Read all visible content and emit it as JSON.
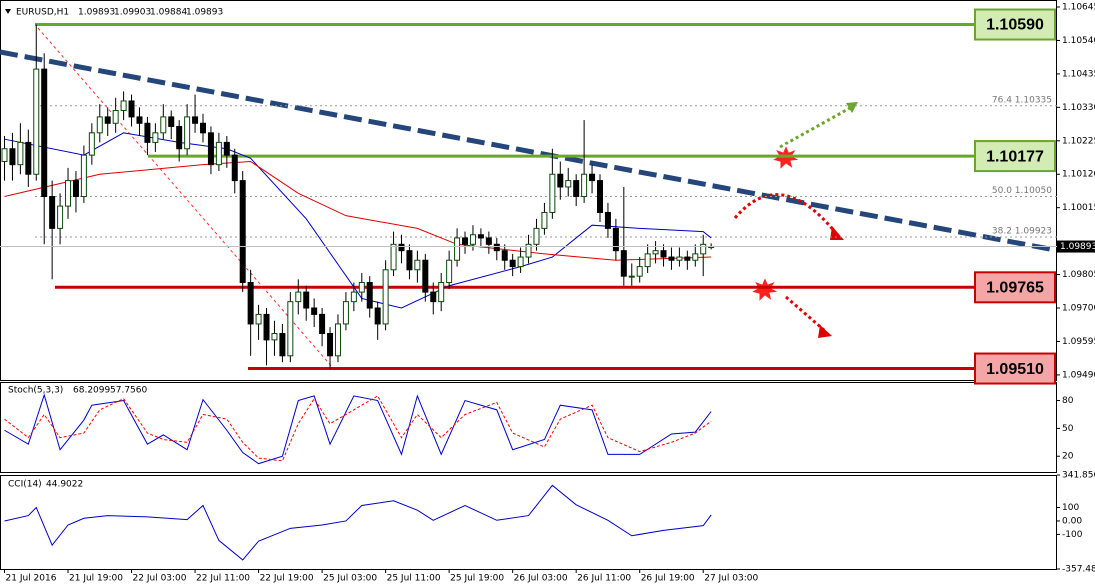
{
  "chart_data": [
    {
      "type": "candlestick",
      "title": "EURUSD,H1",
      "categories": [
        "21 Jul 2016",
        null,
        null,
        null,
        null,
        null,
        null,
        null,
        "21 Jul 19:00",
        null,
        null,
        null,
        null,
        null,
        null,
        null,
        "22 Jul 03:00",
        null,
        null,
        null,
        null,
        null,
        null,
        null,
        "22 Jul 11:00",
        null,
        null,
        null,
        null,
        null,
        null,
        null,
        "22 Jul 19:00",
        null,
        null,
        null,
        null,
        null,
        null,
        null,
        "25 Jul 03:00",
        null,
        null,
        null,
        null,
        null,
        null,
        null,
        "25 Jul 11:00",
        null,
        null,
        null,
        null,
        null,
        null,
        null,
        "25 Jul 19:00",
        null,
        null,
        null,
        null,
        null,
        null,
        null,
        "26 Jul 03:00",
        null,
        null,
        null,
        null,
        null,
        null,
        null,
        "26 Jul 11:00",
        null,
        null,
        null,
        null,
        null,
        null,
        null,
        "26 Jul 19:00",
        null,
        null,
        null,
        null,
        null,
        null,
        null,
        "27 Jul 03:00",
        null
      ],
      "candles": [
        [
          1.1016,
          1.1024,
          1.101,
          1.102
        ],
        [
          1.102,
          1.1025,
          1.101,
          1.1015
        ],
        [
          1.1015,
          1.1028,
          1.1012,
          1.1022
        ],
        [
          1.1022,
          1.1026,
          1.1008,
          1.1012
        ],
        [
          1.1012,
          1.1059,
          1.101,
          1.1045
        ],
        [
          1.1045,
          1.105,
          1.099,
          1.1005
        ],
        [
          1.1005,
          1.101,
          1.0979,
          1.0995
        ],
        [
          1.0995,
          1.1006,
          1.099,
          1.1002
        ],
        [
          1.1002,
          1.1014,
          1.0998,
          1.101
        ],
        [
          1.101,
          1.1013,
          1.1,
          1.1005
        ],
        [
          1.1005,
          1.1021,
          1.1003,
          1.1018
        ],
        [
          1.1018,
          1.1028,
          1.1015,
          1.1025
        ],
        [
          1.1025,
          1.1034,
          1.1022,
          1.103
        ],
        [
          1.103,
          1.1033,
          1.1024,
          1.1028
        ],
        [
          1.1028,
          1.1036,
          1.1025,
          1.1032
        ],
        [
          1.1032,
          1.1038,
          1.1029,
          1.1035
        ],
        [
          1.1035,
          1.1037,
          1.1027,
          1.103
        ],
        [
          1.103,
          1.1033,
          1.1024,
          1.1028
        ],
        [
          1.1028,
          1.103,
          1.1018,
          1.1022
        ],
        [
          1.1022,
          1.1028,
          1.1019,
          1.1025
        ],
        [
          1.1025,
          1.1034,
          1.1023,
          1.103
        ],
        [
          1.103,
          1.1032,
          1.1023,
          1.1027
        ],
        [
          1.1027,
          1.1029,
          1.1016,
          1.102
        ],
        [
          1.102,
          1.1034,
          1.1018,
          1.103
        ],
        [
          1.103,
          1.1037,
          1.1025,
          1.1028
        ],
        [
          1.1028,
          1.1031,
          1.1022,
          1.1025
        ],
        [
          1.1025,
          1.1027,
          1.1012,
          1.1015
        ],
        [
          1.1015,
          1.1025,
          1.1013,
          1.1022
        ],
        [
          1.1022,
          1.1024,
          1.1014,
          1.1018
        ],
        [
          1.1018,
          1.102,
          1.1006,
          1.101
        ],
        [
          1.101,
          1.1013,
          1.0975,
          1.0978
        ],
        [
          1.0978,
          1.0982,
          1.0955,
          1.0965
        ],
        [
          1.0965,
          1.0971,
          1.096,
          1.0968
        ],
        [
          1.0968,
          1.097,
          1.0952,
          1.096
        ],
        [
          1.096,
          1.0966,
          1.0955,
          1.0962
        ],
        [
          1.0962,
          1.0965,
          1.0953,
          1.0955
        ],
        [
          1.0955,
          1.0975,
          1.0953,
          1.0972
        ],
        [
          1.0972,
          1.0979,
          1.0968,
          1.0975
        ],
        [
          1.0975,
          1.0977,
          1.0966,
          1.097
        ],
        [
          1.097,
          1.0973,
          1.0964,
          1.0968
        ],
        [
          1.0968,
          1.097,
          1.0958,
          1.0962
        ],
        [
          1.0962,
          1.0964,
          1.0951,
          1.0955
        ],
        [
          1.0955,
          1.0968,
          1.0953,
          1.0965
        ],
        [
          1.0965,
          1.0975,
          1.0963,
          1.0972
        ],
        [
          1.0972,
          1.0978,
          1.0969,
          1.0975
        ],
        [
          1.0975,
          1.0981,
          1.0972,
          1.0978
        ],
        [
          1.0978,
          1.098,
          1.0967,
          1.097
        ],
        [
          1.097,
          1.0972,
          1.096,
          1.0965
        ],
        [
          1.0965,
          1.0985,
          1.0963,
          1.0982
        ],
        [
          1.0982,
          1.0994,
          1.098,
          1.099
        ],
        [
          1.099,
          1.0993,
          1.0984,
          1.0988
        ],
        [
          1.0988,
          1.099,
          1.0979,
          1.0982
        ],
        [
          1.0982,
          1.0988,
          1.0978,
          1.0985
        ],
        [
          1.0985,
          1.0987,
          1.0972,
          1.0975
        ],
        [
          1.0975,
          1.0978,
          1.0968,
          1.0972
        ],
        [
          1.0972,
          1.0981,
          1.0969,
          1.0978
        ],
        [
          1.0978,
          1.0988,
          1.0976,
          1.0985
        ],
        [
          1.0985,
          1.0995,
          1.0983,
          1.0992
        ],
        [
          1.0992,
          1.0994,
          1.0987,
          1.099
        ],
        [
          1.099,
          1.0996,
          1.0988,
          1.0993
        ],
        [
          1.0993,
          1.0995,
          1.0989,
          1.0992
        ],
        [
          1.0992,
          1.0994,
          1.0987,
          1.099
        ],
        [
          1.099,
          1.0992,
          1.0985,
          1.0988
        ],
        [
          1.0988,
          1.099,
          1.0982,
          1.0985
        ],
        [
          1.0985,
          1.0987,
          1.098,
          1.0983
        ],
        [
          1.0983,
          1.0989,
          1.0981,
          1.0986
        ],
        [
          1.0986,
          1.0993,
          1.0984,
          1.099
        ],
        [
          1.099,
          1.0998,
          1.0988,
          1.0995
        ],
        [
          1.0995,
          1.1003,
          1.0993,
          1.1
        ],
        [
          1.1,
          1.102,
          1.0998,
          1.1012
        ],
        [
          1.1012,
          1.1016,
          1.1004,
          1.1008
        ],
        [
          1.1008,
          1.1014,
          1.1005,
          1.101
        ],
        [
          1.101,
          1.1012,
          1.1002,
          1.1005
        ],
        [
          1.1005,
          1.1029,
          1.1003,
          1.1012
        ],
        [
          1.1012,
          1.1015,
          1.1006,
          1.101
        ],
        [
          1.101,
          1.1012,
          1.0997,
          1.1
        ],
        [
          1.1,
          1.1003,
          1.0992,
          1.0995
        ],
        [
          1.0995,
          1.0998,
          1.0985,
          1.0988
        ],
        [
          1.0988,
          1.1008,
          1.0977,
          1.098
        ],
        [
          1.098,
          1.0984,
          1.0977,
          1.098
        ],
        [
          1.098,
          1.0986,
          1.0978,
          1.0983
        ],
        [
          1.0983,
          1.099,
          1.0981,
          1.0987
        ],
        [
          1.0987,
          1.0991,
          1.0984,
          1.0988
        ],
        [
          1.0988,
          1.099,
          1.0983,
          1.0986
        ],
        [
          1.0986,
          1.0989,
          1.0982,
          1.0985
        ],
        [
          1.0985,
          1.0989,
          1.0983,
          1.0986
        ],
        [
          1.0986,
          1.0988,
          1.0982,
          1.0985
        ],
        [
          1.0985,
          1.099,
          1.0983,
          1.0987
        ],
        [
          1.0987,
          1.0993,
          1.098,
          1.099
        ],
        [
          1.09893,
          1.09903,
          1.09884,
          1.09893
        ]
      ],
      "ylim": [
        1.09474,
        1.10667
      ],
      "yticks": [
        1.10645,
        {
          "value": 1.1054,
          "label": "1.10540"
        },
        1.10435,
        {
          "value": 1.1033,
          "label": "1.10330"
        },
        1.10225,
        {
          "value": 1.1012,
          "label": "1.10120"
        },
        1.10015,
        1.09805,
        {
          "value": 1.097,
          "label": "1.09700"
        },
        1.09595,
        {
          "value": 1.0949,
          "label": "1.09490"
        }
      ],
      "last_price": 1.09893,
      "moving_averages": [
        {
          "color": "#0000cc",
          "x": [
            0,
            10,
            15,
            22,
            28,
            31,
            38,
            45,
            50,
            56,
            65,
            69,
            74,
            80,
            88,
            89
          ],
          "values": [
            1.1023,
            1.1018,
            1.1025,
            1.1022,
            1.102,
            1.1017,
            1.0998,
            1.0973,
            1.097,
            1.0977,
            1.0983,
            1.0986,
            1.0996,
            1.0995,
            1.0994,
            1.0992
          ]
        },
        {
          "color": "#e00000",
          "x": [
            0,
            12,
            25,
            31,
            37,
            43,
            52,
            57,
            68,
            77,
            89
          ],
          "values": [
            1.1005,
            1.1012,
            1.1015,
            1.1016,
            1.1006,
            1.0999,
            1.0995,
            1.099,
            1.0987,
            1.0985,
            1.0986
          ]
        }
      ],
      "levels": [
        {
          "value": 1.1059,
          "label": "1.10590",
          "color": "#6aa52c",
          "fill": "#d2ecb4"
        },
        {
          "value": 1.10177,
          "label": "1.10177",
          "color": "#6aa52c",
          "fill": "#d2ecb4"
        },
        {
          "value": 1.09765,
          "label": "1.09765",
          "color": "#c80000",
          "fill": "#f4a6a6"
        },
        {
          "value": 1.0951,
          "label": "1.09510",
          "color": "#c80000",
          "fill": "#f4a6a6"
        }
      ],
      "fib_levels": [
        {
          "value": 1.10335,
          "label": "76.4  1.10335"
        },
        {
          "value": 1.1005,
          "label": "50.0  1.10050"
        },
        {
          "value": 1.09923,
          "label": "38.2  1.09923"
        }
      ]
    },
    {
      "type": "line",
      "title": "Stoch(5,3,3)",
      "readouts": [
        68.2099,
        {
          "value": 57.756,
          "label": "57.7560"
        }
      ],
      "series": [
        {
          "color": "#0000cc",
          "x": [
            0,
            3,
            5,
            7,
            10,
            11,
            15,
            18,
            20,
            23,
            25,
            28,
            30,
            32,
            35,
            37,
            39,
            41,
            44,
            47,
            50,
            52,
            55,
            58,
            62,
            64,
            68,
            70,
            74,
            76,
            80,
            84,
            87,
            89
          ],
          "values": [
            48,
            33,
            86,
            27,
            59,
            75,
            80,
            33,
            43,
            27,
            81,
            48,
            24,
            12,
            20,
            80,
            85,
            33,
            85,
            80,
            22,
            85,
            22,
            80,
            70,
            27,
            38,
            75,
            70,
            22,
            22,
            44,
            46,
            68.2099
          ]
        },
        {
          "color": "#ff0000",
          "dash": true,
          "x": [
            0,
            3,
            5,
            7,
            10,
            12,
            15,
            18,
            20,
            23,
            25,
            28,
            30,
            32,
            35,
            37,
            39,
            41,
            44,
            47,
            50,
            52,
            55,
            58,
            62,
            64,
            68,
            70,
            74,
            76,
            80,
            84,
            87,
            89
          ],
          "values": [
            60,
            40,
            65,
            40,
            45,
            70,
            82,
            45,
            38,
            35,
            65,
            60,
            35,
            18,
            15,
            55,
            82,
            55,
            70,
            85,
            40,
            65,
            40,
            65,
            78,
            45,
            30,
            60,
            75,
            40,
            25,
            35,
            45,
            57.756
          ]
        }
      ],
      "ylim": [
        3,
        100
      ],
      "yticks": [
        20,
        50,
        80
      ]
    },
    {
      "type": "line",
      "title": "CCI(14)",
      "readouts": [
        44.9022
      ],
      "series": [
        {
          "color": "#0000cc",
          "x": [
            0,
            3,
            4,
            6,
            8,
            10,
            13,
            18,
            23,
            25,
            27,
            30,
            32,
            36,
            40,
            43,
            45,
            49,
            52,
            54,
            58,
            62,
            66,
            69,
            72,
            76,
            79,
            83,
            88,
            89
          ],
          "values": [
            0,
            40,
            100,
            -180,
            -30,
            20,
            40,
            30,
            10,
            115,
            -145,
            -290,
            -150,
            -55,
            -30,
            0,
            115,
            150,
            80,
            5,
            115,
            5,
            40,
            265,
            120,
            5,
            -110,
            -70,
            -35,
            44.9022
          ]
        }
      ],
      "ylim": [
        -357.481,
        341.856
      ],
      "yticks": [
        341.856,
        100,
        {
          "value": 0,
          "label": "0.00"
        },
        -100,
        -357.481
      ]
    }
  ]
}
